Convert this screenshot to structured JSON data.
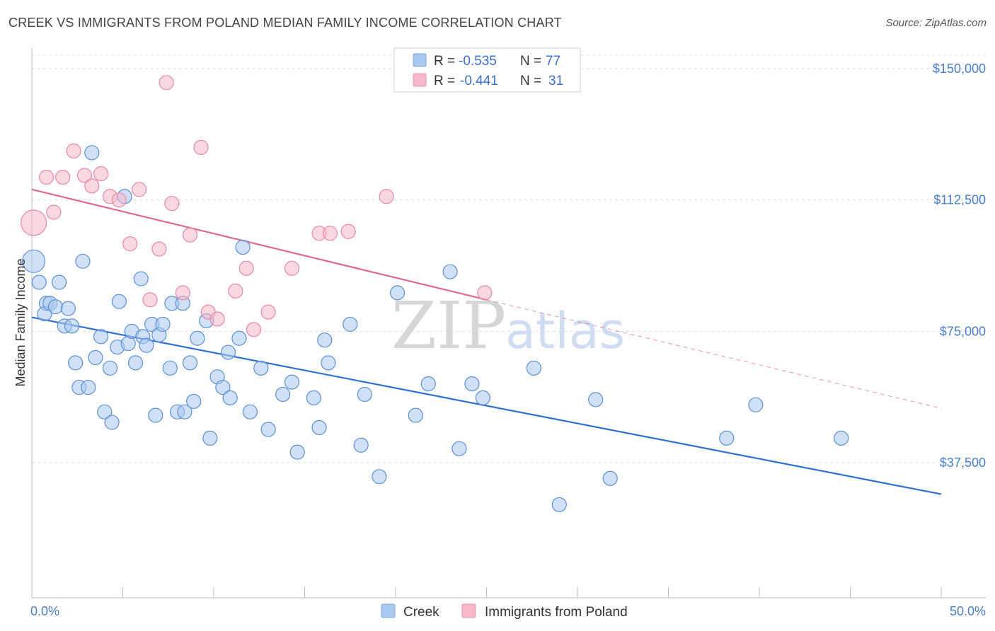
{
  "header": {
    "title": "CREEK VS IMMIGRANTS FROM POLAND MEDIAN FAMILY INCOME CORRELATION CHART",
    "source": "Source: ZipAtlas.com"
  },
  "watermark": {
    "zip": "ZIP",
    "atlas": "atlas"
  },
  "legend": {
    "rows": [
      {
        "r_label": "R = ",
        "r_value": "-0.535",
        "n_label": "N = ",
        "n_value": "77",
        "color": "#a9c8f0"
      },
      {
        "r_label": "R = ",
        "r_value": "-0.441",
        "n_label": "N = ",
        "n_value": "31",
        "color": "#f5b8c9"
      }
    ]
  },
  "bottom_legend": [
    {
      "label": "Creek",
      "color": "#a9c8f0"
    },
    {
      "label": "Immigrants from Poland",
      "color": "#f5b8c9"
    }
  ],
  "chart_data": {
    "type": "scatter",
    "title": "CREEK VS IMMIGRANTS FROM POLAND MEDIAN FAMILY INCOME CORRELATION CHART",
    "xlabel": "",
    "ylabel": "Median Family Income",
    "xlim": [
      0,
      50
    ],
    "ylim": [
      0,
      155000
    ],
    "x_tick_labels": [
      "0.0%",
      "50.0%"
    ],
    "y_ticks": [
      37500,
      75000,
      112500,
      150000
    ],
    "y_tick_labels": [
      "$37,500",
      "$75,000",
      "$112,500",
      "$150,000"
    ],
    "grid": "horizontal dashed",
    "legend_position": "top-center",
    "series": [
      {
        "name": "Creek",
        "color": "#a9c8f0",
        "stroke": "#5b8fd6",
        "trend": {
          "x": [
            0,
            50
          ],
          "y": [
            79000,
            28500
          ],
          "color": "#2f6fd0"
        },
        "points": [
          [
            0.1,
            95000,
            16
          ],
          [
            0.4,
            89000,
            10
          ],
          [
            0.8,
            83000,
            10
          ],
          [
            0.7,
            80000,
            10
          ],
          [
            1.0,
            83000,
            10
          ],
          [
            1.3,
            82000,
            10
          ],
          [
            1.5,
            89000,
            10
          ],
          [
            1.8,
            76500,
            10
          ],
          [
            2.0,
            81500,
            10
          ],
          [
            2.2,
            76500,
            10
          ],
          [
            2.4,
            66000,
            10
          ],
          [
            2.6,
            59000,
            10
          ],
          [
            2.8,
            95000,
            10
          ],
          [
            3.1,
            59000,
            10
          ],
          [
            3.3,
            126000,
            10
          ],
          [
            3.5,
            67500,
            10
          ],
          [
            3.8,
            73500,
            10
          ],
          [
            4.0,
            52000,
            10
          ],
          [
            4.3,
            64500,
            10
          ],
          [
            4.4,
            49000,
            10
          ],
          [
            4.7,
            70500,
            10
          ],
          [
            4.8,
            83500,
            10
          ],
          [
            5.1,
            113500,
            10
          ],
          [
            5.3,
            71500,
            10
          ],
          [
            5.5,
            75000,
            10
          ],
          [
            5.7,
            66000,
            10
          ],
          [
            6.0,
            90000,
            10
          ],
          [
            6.1,
            73500,
            10
          ],
          [
            6.3,
            71000,
            10
          ],
          [
            6.6,
            77000,
            10
          ],
          [
            6.8,
            51000,
            10
          ],
          [
            7.0,
            74000,
            10
          ],
          [
            7.2,
            77000,
            10
          ],
          [
            7.6,
            64500,
            10
          ],
          [
            7.7,
            83000,
            10
          ],
          [
            8.0,
            52000,
            10
          ],
          [
            8.3,
            83000,
            10
          ],
          [
            8.4,
            52000,
            10
          ],
          [
            8.7,
            66000,
            10
          ],
          [
            8.9,
            55000,
            10
          ],
          [
            9.1,
            73000,
            10
          ],
          [
            9.6,
            78000,
            10
          ],
          [
            9.8,
            44500,
            10
          ],
          [
            10.2,
            62000,
            10
          ],
          [
            10.5,
            59000,
            10
          ],
          [
            10.8,
            69000,
            10
          ],
          [
            10.9,
            56000,
            10
          ],
          [
            11.4,
            73000,
            10
          ],
          [
            11.6,
            99000,
            10
          ],
          [
            12.0,
            52000,
            10
          ],
          [
            12.6,
            64500,
            10
          ],
          [
            13.0,
            47000,
            10
          ],
          [
            13.8,
            57000,
            10
          ],
          [
            14.3,
            60500,
            10
          ],
          [
            14.6,
            40500,
            10
          ],
          [
            15.5,
            56000,
            10
          ],
          [
            15.8,
            47500,
            10
          ],
          [
            16.1,
            72500,
            10
          ],
          [
            16.3,
            66000,
            10
          ],
          [
            17.5,
            77000,
            10
          ],
          [
            18.1,
            42500,
            10
          ],
          [
            18.3,
            57000,
            10
          ],
          [
            19.1,
            33500,
            10
          ],
          [
            20.1,
            86000,
            10
          ],
          [
            21.1,
            51000,
            10
          ],
          [
            21.8,
            60000,
            10
          ],
          [
            23.5,
            41500,
            10
          ],
          [
            23.0,
            92000,
            10
          ],
          [
            24.2,
            60000,
            10
          ],
          [
            24.8,
            56000,
            10
          ],
          [
            27.6,
            64500,
            10
          ],
          [
            29.0,
            25500,
            10
          ],
          [
            31.0,
            55500,
            10
          ],
          [
            31.8,
            33000,
            10
          ],
          [
            38.2,
            44500,
            10
          ],
          [
            39.8,
            54000,
            10
          ],
          [
            44.5,
            44500,
            10
          ]
        ]
      },
      {
        "name": "Immigrants from Poland",
        "color": "#f5b8c9",
        "stroke": "#e888a6",
        "trend": {
          "x": [
            0,
            25
          ],
          "y": [
            115500,
            84000
          ],
          "x_dashed": [
            25,
            50
          ],
          "y_dashed": [
            84000,
            53000
          ],
          "color": "#e06891"
        },
        "points": [
          [
            0.1,
            106000,
            18
          ],
          [
            0.8,
            119000,
            10
          ],
          [
            1.2,
            109000,
            10
          ],
          [
            1.7,
            119000,
            10
          ],
          [
            2.3,
            126500,
            10
          ],
          [
            2.9,
            119500,
            10
          ],
          [
            3.3,
            116500,
            10
          ],
          [
            3.8,
            120000,
            10
          ],
          [
            4.3,
            113500,
            10
          ],
          [
            4.8,
            112500,
            10
          ],
          [
            5.4,
            100000,
            10
          ],
          [
            5.9,
            115500,
            10
          ],
          [
            6.5,
            84000,
            10
          ],
          [
            7.0,
            98500,
            10
          ],
          [
            7.4,
            146000,
            10
          ],
          [
            7.7,
            111500,
            10
          ],
          [
            8.3,
            86000,
            10
          ],
          [
            8.7,
            102500,
            10
          ],
          [
            9.3,
            127500,
            10
          ],
          [
            9.7,
            80500,
            10
          ],
          [
            10.2,
            78500,
            10
          ],
          [
            11.2,
            86500,
            10
          ],
          [
            11.8,
            93000,
            10
          ],
          [
            12.2,
            75500,
            10
          ],
          [
            13.0,
            80500,
            10
          ],
          [
            14.3,
            93000,
            10
          ],
          [
            15.8,
            103000,
            10
          ],
          [
            16.4,
            103000,
            10
          ],
          [
            17.4,
            103500,
            10
          ],
          [
            19.5,
            113500,
            10
          ],
          [
            24.9,
            86000,
            10
          ]
        ]
      }
    ]
  }
}
